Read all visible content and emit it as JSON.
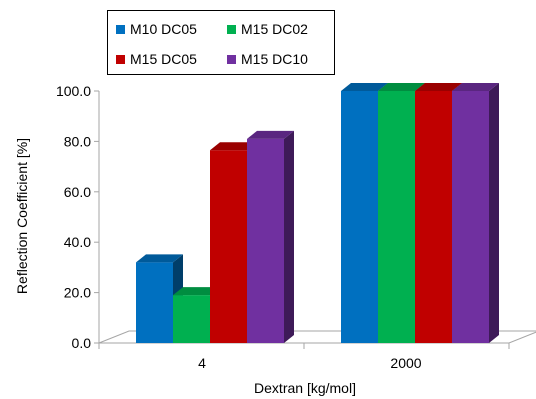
{
  "chart_data": {
    "type": "bar",
    "style": "3d-clustered-column",
    "categories": [
      "4",
      "2000"
    ],
    "series": [
      {
        "name": "M10 DC05",
        "values": [
          32.0,
          100.0
        ],
        "color": "#0070c0"
      },
      {
        "name": "M15 DC02",
        "values": [
          19.0,
          100.0
        ],
        "color": "#00b050"
      },
      {
        "name": "M15 DC05",
        "values": [
          76.5,
          100.0
        ],
        "color": "#c00000"
      },
      {
        "name": "M15 DC10",
        "values": [
          81.0,
          100.0
        ],
        "color": "#7030a0"
      }
    ],
    "xlabel": "Dextran [kg/mol]",
    "ylabel": "Reflection Coefficient [%]",
    "ylim": [
      0,
      100
    ],
    "yticks": [
      "0.0",
      "20.0",
      "40.0",
      "60.0",
      "80.0",
      "100.0"
    ],
    "legend_position": "top",
    "grid": false
  }
}
